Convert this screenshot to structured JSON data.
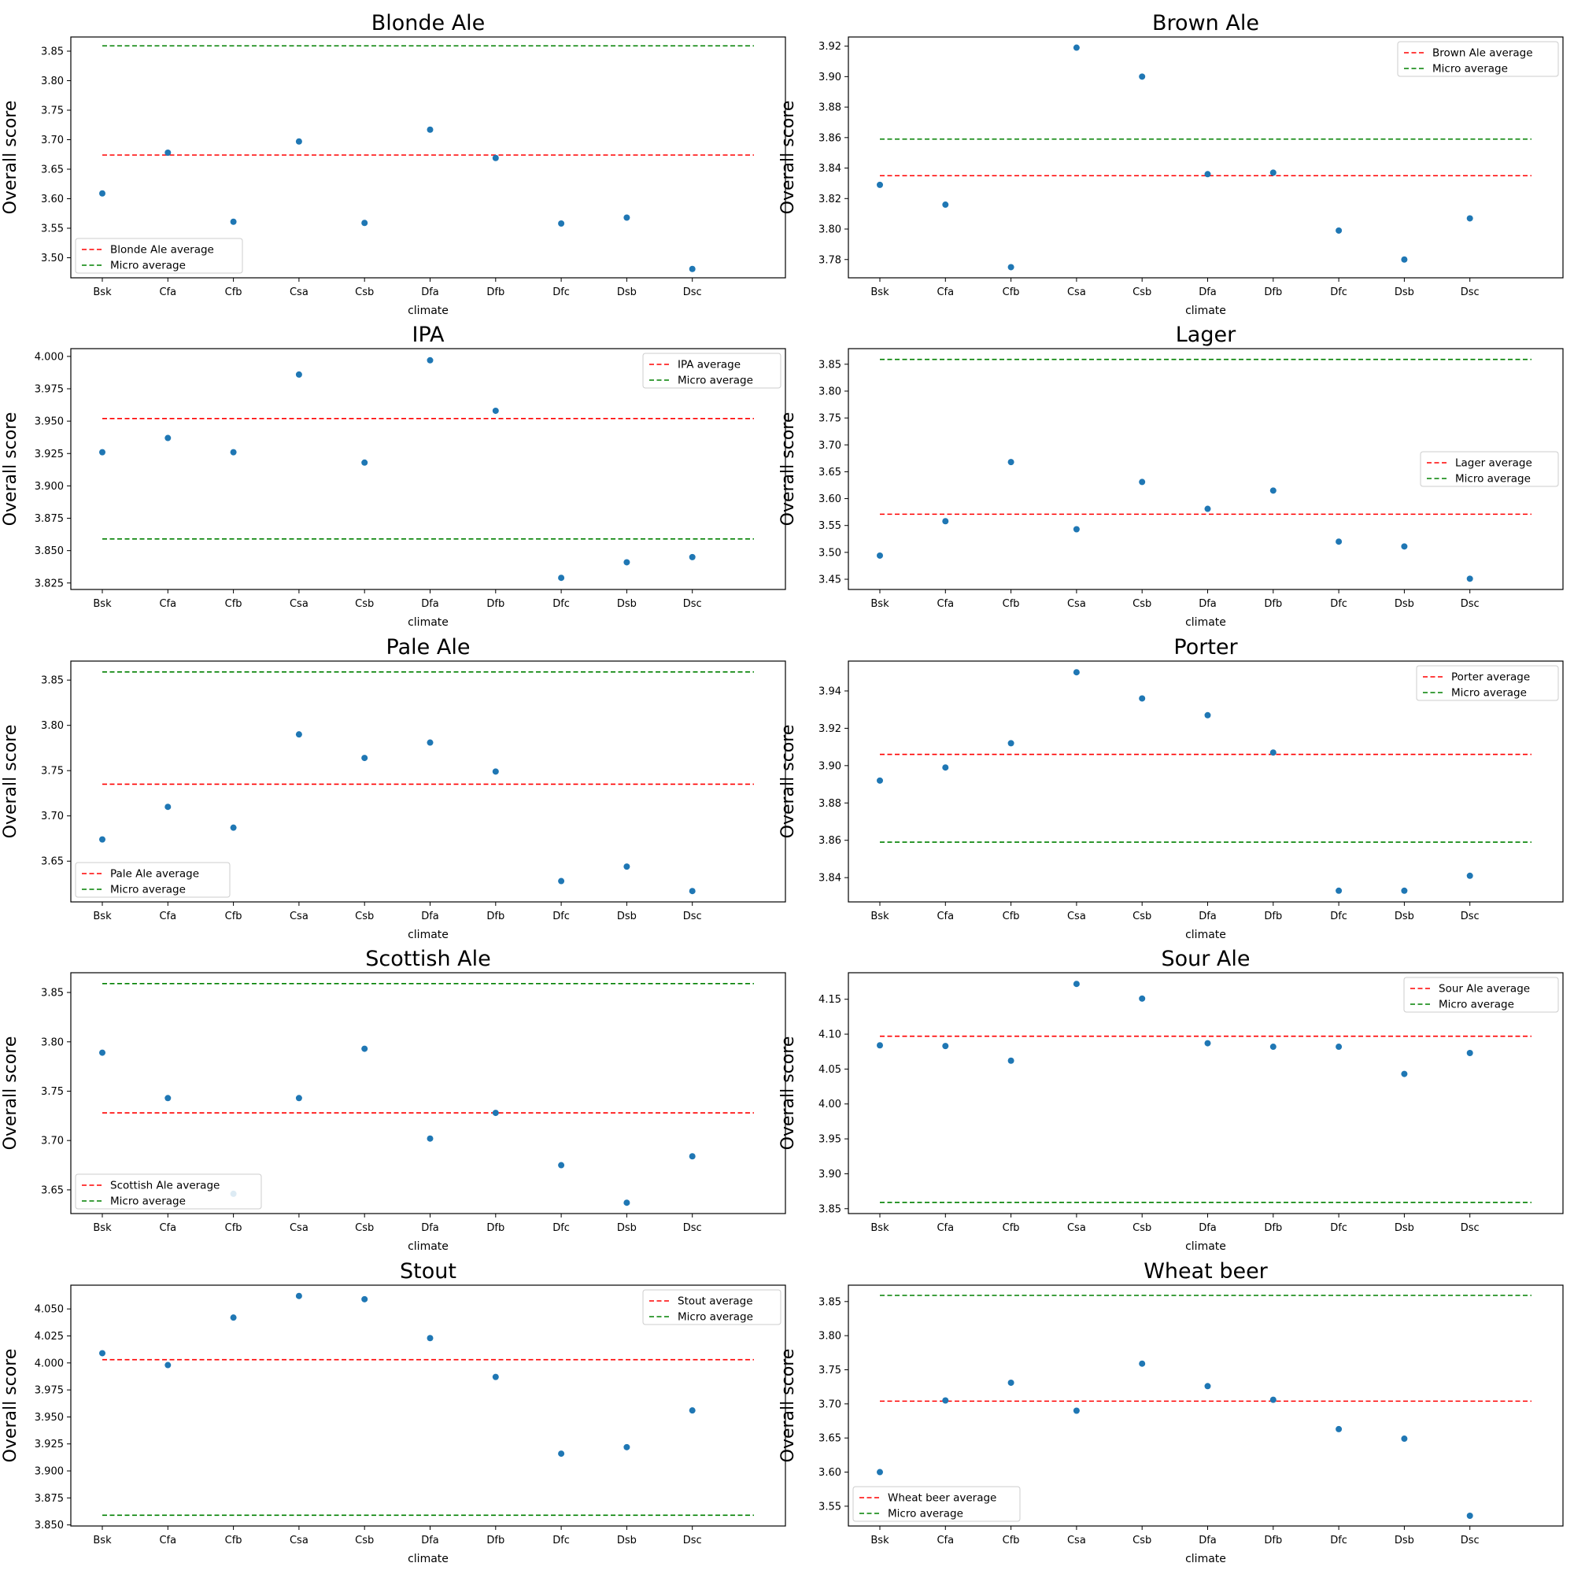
{
  "figure": {
    "climate_categories": [
      "Bsk",
      "Cfa",
      "Cfb",
      "Csa",
      "Csb",
      "Dfa",
      "Dfb",
      "Dfc",
      "Dsb",
      "Dsc"
    ],
    "point_color": "#1f77b4",
    "style_average_color": "#ff0000",
    "micro_average_color": "#008000"
  },
  "chart_data": [
    {
      "type": "scatter",
      "title": "Blonde Ale",
      "xlabel": "climate",
      "ylabel": "Overall score",
      "categories": [
        "Bsk",
        "Cfa",
        "Cfb",
        "Csa",
        "Csb",
        "Dfa",
        "Dfb",
        "Dfc",
        "Dsb",
        "Dsc"
      ],
      "values": [
        3.609,
        3.678,
        3.561,
        3.697,
        3.559,
        3.717,
        3.669,
        3.558,
        3.568,
        3.481
      ],
      "style_average": 3.674,
      "micro_average": 3.859,
      "style_average_label": "Blonde Ale average",
      "micro_average_label": "Micro average",
      "ylim": [
        3.466,
        3.874
      ],
      "yticks": [
        "3.50",
        "3.55",
        "3.60",
        "3.65",
        "3.70",
        "3.75",
        "3.80",
        "3.85"
      ],
      "legend_loc": "lower left",
      "grid": false
    },
    {
      "type": "scatter",
      "title": "Brown Ale",
      "xlabel": "climate",
      "ylabel": "Overall score",
      "categories": [
        "Bsk",
        "Cfa",
        "Cfb",
        "Csa",
        "Csb",
        "Dfa",
        "Dfb",
        "Dfc",
        "Dsb",
        "Dsc"
      ],
      "values": [
        3.829,
        3.816,
        3.775,
        3.919,
        3.9,
        3.836,
        3.837,
        3.799,
        3.78,
        3.807
      ],
      "style_average": 3.835,
      "micro_average": 3.859,
      "style_average_label": "Brown Ale average",
      "micro_average_label": "Micro average",
      "ylim": [
        3.768,
        3.926
      ],
      "yticks": [
        "3.78",
        "3.80",
        "3.82",
        "3.84",
        "3.86",
        "3.88",
        "3.90",
        "3.92"
      ],
      "legend_loc": "upper right",
      "grid": false
    },
    {
      "type": "scatter",
      "title": "IPA",
      "xlabel": "climate",
      "ylabel": "Overall score",
      "categories": [
        "Bsk",
        "Cfa",
        "Cfb",
        "Csa",
        "Csb",
        "Dfa",
        "Dfb",
        "Dfc",
        "Dsb",
        "Dsc"
      ],
      "values": [
        3.926,
        3.937,
        3.926,
        3.986,
        3.918,
        3.997,
        3.958,
        3.829,
        3.841,
        3.845
      ],
      "style_average": 3.952,
      "micro_average": 3.859,
      "style_average_label": "IPA average",
      "micro_average_label": "Micro average",
      "ylim": [
        3.82,
        4.006
      ],
      "yticks": [
        "3.825",
        "3.850",
        "3.875",
        "3.900",
        "3.925",
        "3.950",
        "3.975",
        "4.000"
      ],
      "legend_loc": "upper right",
      "grid": false
    },
    {
      "type": "scatter",
      "title": "Lager",
      "xlabel": "climate",
      "ylabel": "Overall score",
      "categories": [
        "Bsk",
        "Cfa",
        "Cfb",
        "Csa",
        "Csb",
        "Dfa",
        "Dfb",
        "Dfc",
        "Dsb",
        "Dsc"
      ],
      "values": [
        3.494,
        3.558,
        3.668,
        3.543,
        3.631,
        3.581,
        3.615,
        3.52,
        3.511,
        3.451
      ],
      "style_average": 3.571,
      "micro_average": 3.859,
      "style_average_label": "Lager average",
      "micro_average_label": "Micro average",
      "ylim": [
        3.431,
        3.879
      ],
      "yticks": [
        "3.45",
        "3.50",
        "3.55",
        "3.60",
        "3.65",
        "3.70",
        "3.75",
        "3.80",
        "3.85"
      ],
      "legend_loc": "center right",
      "grid": false
    },
    {
      "type": "scatter",
      "title": "Pale Ale",
      "xlabel": "climate",
      "ylabel": "Overall score",
      "categories": [
        "Bsk",
        "Cfa",
        "Cfb",
        "Csa",
        "Csb",
        "Dfa",
        "Dfb",
        "Dfc",
        "Dsb",
        "Dsc"
      ],
      "values": [
        3.674,
        3.71,
        3.687,
        3.79,
        3.764,
        3.781,
        3.749,
        3.628,
        3.644,
        3.617
      ],
      "style_average": 3.735,
      "micro_average": 3.859,
      "style_average_label": "Pale Ale average",
      "micro_average_label": "Micro average",
      "ylim": [
        3.605,
        3.871
      ],
      "yticks": [
        "3.65",
        "3.70",
        "3.75",
        "3.80",
        "3.85"
      ],
      "legend_loc": "lower left",
      "grid": false
    },
    {
      "type": "scatter",
      "title": "Porter",
      "xlabel": "climate",
      "ylabel": "Overall score",
      "categories": [
        "Bsk",
        "Cfa",
        "Cfb",
        "Csa",
        "Csb",
        "Dfa",
        "Dfb",
        "Dfc",
        "Dsb",
        "Dsc"
      ],
      "values": [
        3.892,
        3.899,
        3.912,
        3.95,
        3.936,
        3.927,
        3.907,
        3.833,
        3.833,
        3.841
      ],
      "style_average": 3.906,
      "micro_average": 3.859,
      "style_average_label": "Porter average",
      "micro_average_label": "Micro average",
      "ylim": [
        3.827,
        3.956
      ],
      "yticks": [
        "3.84",
        "3.86",
        "3.88",
        "3.90",
        "3.92",
        "3.94"
      ],
      "legend_loc": "upper right",
      "grid": false
    },
    {
      "type": "scatter",
      "title": "Scottish Ale",
      "xlabel": "climate",
      "ylabel": "Overall score",
      "categories": [
        "Bsk",
        "Cfa",
        "Cfb",
        "Csa",
        "Csb",
        "Dfa",
        "Dfb",
        "Dfc",
        "Dsb",
        "Dsc"
      ],
      "values": [
        3.789,
        3.743,
        3.646,
        3.743,
        3.793,
        3.702,
        3.728,
        3.675,
        3.637,
        3.684
      ],
      "style_average": 3.728,
      "micro_average": 3.859,
      "style_average_label": "Scottish Ale  average",
      "micro_average_label": "Micro average",
      "ylim": [
        3.626,
        3.87
      ],
      "yticks": [
        "3.65",
        "3.70",
        "3.75",
        "3.80",
        "3.85"
      ],
      "legend_loc": "lower left",
      "grid": false
    },
    {
      "type": "scatter",
      "title": "Sour Ale",
      "xlabel": "climate",
      "ylabel": "Overall score",
      "categories": [
        "Bsk",
        "Cfa",
        "Cfb",
        "Csa",
        "Csb",
        "Dfa",
        "Dfb",
        "Dfc",
        "Dsb",
        "Dsc"
      ],
      "values": [
        4.084,
        4.083,
        4.062,
        4.172,
        4.151,
        4.087,
        4.082,
        4.082,
        4.043,
        4.073
      ],
      "style_average": 4.097,
      "micro_average": 3.859,
      "style_average_label": "Sour Ale average",
      "micro_average_label": "Micro average",
      "ylim": [
        3.843,
        4.188
      ],
      "yticks": [
        "3.85",
        "3.90",
        "3.95",
        "4.00",
        "4.05",
        "4.10",
        "4.15"
      ],
      "legend_loc": "upper right",
      "grid": false
    },
    {
      "type": "scatter",
      "title": "Stout",
      "xlabel": "climate",
      "ylabel": "Overall score",
      "categories": [
        "Bsk",
        "Cfa",
        "Cfb",
        "Csa",
        "Csb",
        "Dfa",
        "Dfb",
        "Dfc",
        "Dsb",
        "Dsc"
      ],
      "values": [
        4.009,
        3.998,
        4.042,
        4.062,
        4.059,
        4.023,
        3.987,
        3.916,
        3.922,
        3.956
      ],
      "style_average": 4.003,
      "micro_average": 3.859,
      "style_average_label": "Stout average",
      "micro_average_label": "Micro average",
      "ylim": [
        3.849,
        4.072
      ],
      "yticks": [
        "3.850",
        "3.875",
        "3.900",
        "3.925",
        "3.950",
        "3.975",
        "4.000",
        "4.025",
        "4.050"
      ],
      "legend_loc": "upper right",
      "grid": false
    },
    {
      "type": "scatter",
      "title": "Wheat beer",
      "xlabel": "climate",
      "ylabel": "Overall score",
      "categories": [
        "Bsk",
        "Cfa",
        "Cfb",
        "Csa",
        "Csb",
        "Dfa",
        "Dfb",
        "Dfc",
        "Dsb",
        "Dsc"
      ],
      "values": [
        3.6,
        3.705,
        3.731,
        3.69,
        3.759,
        3.726,
        3.706,
        3.663,
        3.649,
        3.536
      ],
      "style_average": 3.704,
      "micro_average": 3.859,
      "style_average_label": "Wheat beer average",
      "micro_average_label": "Micro average",
      "ylim": [
        3.521,
        3.874
      ],
      "yticks": [
        "3.55",
        "3.60",
        "3.65",
        "3.70",
        "3.75",
        "3.80",
        "3.85"
      ],
      "legend_loc": "lower left",
      "grid": false
    }
  ]
}
